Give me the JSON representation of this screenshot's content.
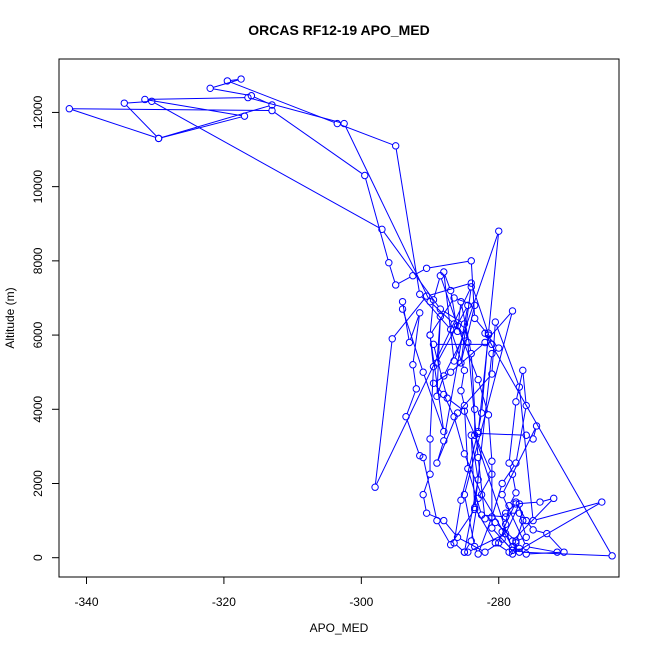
{
  "chart_data": {
    "type": "line",
    "title": "ORCAS RF12-19 APO_MED",
    "xlabel": "APO_MED",
    "ylabel": "Altitude (m)",
    "xlim": [
      -344,
      -262.5
    ],
    "ylim": [
      -520,
      13440
    ],
    "xticks": [
      -340,
      -320,
      -300,
      -280
    ],
    "yticks": [
      0,
      2000,
      4000,
      6000,
      8000,
      10000,
      12000
    ],
    "xtick_labels": [
      "-340",
      "-320",
      "-300",
      "-280"
    ],
    "ytick_labels": [
      "0",
      "2000",
      "4000",
      "6000",
      "8000",
      "10000",
      "12000"
    ],
    "grid": false,
    "colors": {
      "series": "#0000ff",
      "axis": "#000000"
    },
    "series": [
      {
        "values": [
          [
            -271.5,
            150
          ],
          [
            -276,
            300
          ],
          [
            -279.5,
            1700
          ],
          [
            -274.5,
            3550
          ],
          [
            -275,
            3200
          ],
          [
            -276,
            3300
          ],
          [
            -283,
            3350
          ],
          [
            -281.5,
            6000
          ],
          [
            -283.5,
            6450
          ],
          [
            -284,
            8000
          ],
          [
            -290.5,
            7800
          ],
          [
            -292.5,
            7600
          ],
          [
            -295,
            7350
          ],
          [
            -296,
            7950
          ],
          [
            -299.5,
            10300
          ],
          [
            -313,
            12050
          ],
          [
            -342.5,
            12100
          ],
          [
            -329.5,
            11300
          ],
          [
            -334.5,
            12250
          ],
          [
            -330.5,
            12300
          ],
          [
            -297,
            8850
          ],
          [
            -288.5,
            6700
          ],
          [
            -285,
            6300
          ],
          [
            -284.5,
            5800
          ],
          [
            -283,
            2700
          ],
          [
            -282,
            1050
          ],
          [
            -280.5,
            950
          ],
          [
            -277.5,
            450
          ],
          [
            -276,
            550
          ],
          [
            -277,
            1200
          ],
          [
            -279,
            1200
          ],
          [
            -277.5,
            1450
          ],
          [
            -274,
            1500
          ],
          [
            -272,
            1600
          ],
          [
            -278,
            450
          ],
          [
            -277,
            250
          ],
          [
            -278.5,
            150
          ],
          [
            -280.5,
            400
          ],
          [
            -283.5,
            1350
          ],
          [
            -284,
            3300
          ],
          [
            -283,
            2100
          ],
          [
            -285,
            150
          ],
          [
            -284,
            450
          ],
          [
            -283,
            1600
          ],
          [
            -281,
            2250
          ],
          [
            -285,
            3950
          ],
          [
            -287.5,
            4300
          ],
          [
            -289.5,
            5750
          ],
          [
            -281,
            5750
          ],
          [
            -284,
            7400
          ],
          [
            -290.5,
            7050
          ],
          [
            -295.5,
            5900
          ],
          [
            -298,
            1900
          ],
          [
            -284,
            7300
          ],
          [
            -285.5,
            5250
          ],
          [
            -283.5,
            6800
          ],
          [
            -286.5,
            7000
          ],
          [
            -290,
            6000
          ],
          [
            -289.5,
            5150
          ],
          [
            -290,
            3200
          ],
          [
            -290,
            2250
          ],
          [
            -291,
            1700
          ],
          [
            -290.5,
            1200
          ],
          [
            -288,
            1000
          ],
          [
            -286,
            550
          ],
          [
            -282,
            150
          ],
          [
            -280,
            400
          ],
          [
            -279.5,
            700
          ],
          [
            -277.5,
            1500
          ],
          [
            -276,
            1000
          ],
          [
            -275,
            750
          ],
          [
            -273,
            650
          ],
          [
            -270.5,
            150
          ],
          [
            -276,
            100
          ],
          [
            -278,
            300
          ],
          [
            -282.5,
            1700
          ],
          [
            -285,
            2800
          ],
          [
            -286.5,
            3800
          ],
          [
            -288,
            4400
          ],
          [
            -289.5,
            4700
          ],
          [
            -287,
            5000
          ],
          [
            -282,
            5800
          ],
          [
            -278,
            6650
          ],
          [
            -285,
            1700
          ],
          [
            -283.5,
            300
          ],
          [
            -283,
            100
          ],
          [
            -281,
            1100
          ],
          [
            -279.5,
            2000
          ],
          [
            -277.5,
            2550
          ],
          [
            -276,
            4100
          ],
          [
            -276.5,
            5050
          ],
          [
            -277.5,
            4200
          ],
          [
            -278.5,
            2550
          ],
          [
            -278,
            2250
          ],
          [
            -277.5,
            1750
          ],
          [
            -278.5,
            1400
          ],
          [
            -279,
            900
          ],
          [
            -279.5,
            500
          ],
          [
            -278,
            200
          ],
          [
            -277,
            150
          ],
          [
            -263.5,
            50
          ],
          [
            -282,
            6050
          ],
          [
            -280,
            5650
          ],
          [
            -281,
            5500
          ],
          [
            -283.5,
            1300
          ],
          [
            -287,
            350
          ],
          [
            -289,
            1000
          ],
          [
            -291,
            2700
          ],
          [
            -291.5,
            2750
          ],
          [
            -293.5,
            3800
          ],
          [
            -292,
            4550
          ],
          [
            -292.5,
            5200
          ],
          [
            -291.5,
            6600
          ],
          [
            -293,
            5800
          ],
          [
            -294,
            6900
          ],
          [
            -294,
            6700
          ],
          [
            -291,
            5000
          ],
          [
            -288,
            3400
          ],
          [
            -290,
            6000
          ],
          [
            -289.5,
            6950
          ],
          [
            -288.5,
            7600
          ],
          [
            -286,
            6250
          ],
          [
            -283,
            4800
          ],
          [
            -281.5,
            3850
          ],
          [
            -281,
            2600
          ],
          [
            -281,
            800
          ],
          [
            -278,
            200
          ],
          [
            -283.5,
            3300
          ],
          [
            -283.5,
            4000
          ],
          [
            -284,
            5500
          ],
          [
            -285.5,
            6900
          ],
          [
            -286,
            6100
          ],
          [
            -287,
            7200
          ],
          [
            -288,
            7700
          ],
          [
            -286.5,
            5300
          ],
          [
            -280,
            8800
          ],
          [
            -281.5,
            6050
          ],
          [
            -282.5,
            3900
          ],
          [
            -283,
            3400
          ],
          [
            -285.5,
            1550
          ],
          [
            -286.5,
            400
          ],
          [
            -285,
            150
          ],
          [
            -284.5,
            150
          ],
          [
            -279,
            650
          ],
          [
            -277,
            1450
          ],
          [
            -276.5,
            1000
          ],
          [
            -277.5,
            400
          ],
          [
            -278,
            100
          ],
          [
            -265,
            1500
          ],
          [
            -275,
            1000
          ],
          [
            -277,
            4600
          ],
          [
            -280.5,
            6350
          ],
          [
            -281,
            4950
          ],
          [
            -286,
            3900
          ],
          [
            -289,
            2550
          ],
          [
            -288,
            3150
          ],
          [
            -284.5,
            6800
          ],
          [
            -289,
            5250
          ],
          [
            -288.5,
            6500
          ],
          [
            -289,
            4350
          ],
          [
            -288,
            4900
          ],
          [
            -285,
            6000
          ],
          [
            -286.5,
            6300
          ],
          [
            -290,
            6900
          ],
          [
            -302.5,
            11700
          ],
          [
            -316.5,
            12400
          ],
          [
            -331.5,
            12350
          ],
          [
            -317,
            11900
          ],
          [
            -329.5,
            11300
          ],
          [
            -313,
            12200
          ],
          [
            -316,
            12450
          ],
          [
            -322,
            12650
          ],
          [
            -317.5,
            12900
          ],
          [
            -319.5,
            12850
          ],
          [
            -303.5,
            11700
          ],
          [
            -295,
            11100
          ],
          [
            -291.5,
            7100
          ],
          [
            -287,
            6150
          ],
          [
            -285,
            5050
          ],
          [
            -285.5,
            4500
          ],
          [
            -285,
            4100
          ],
          [
            -284.5,
            2400
          ],
          [
            -282.5,
            1150
          ],
          [
            -279,
            1100
          ]
        ]
      }
    ]
  }
}
